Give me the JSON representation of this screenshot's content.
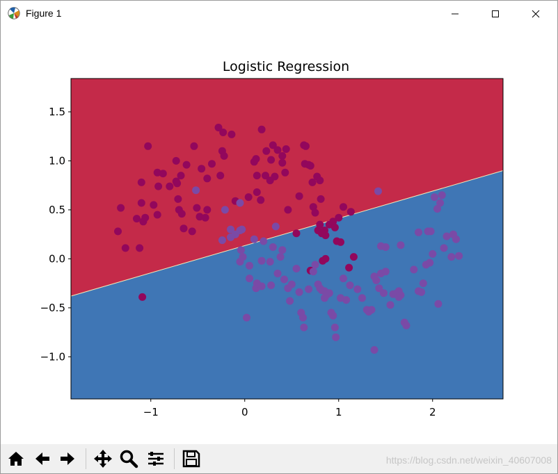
{
  "window": {
    "title": "Figure 1"
  },
  "toolbar": {
    "buttons": [
      {
        "name": "home-icon",
        "title": "Home"
      },
      {
        "name": "back-icon",
        "title": "Back"
      },
      {
        "name": "forward-icon",
        "title": "Forward"
      },
      {
        "name": "pan-icon",
        "title": "Pan"
      },
      {
        "name": "zoom-icon",
        "title": "Zoom"
      },
      {
        "name": "configure-subplots-icon",
        "title": "Configure subplots"
      },
      {
        "name": "save-icon",
        "title": "Save"
      }
    ],
    "watermark": "https://blog.csdn.net/weixin_40607008"
  },
  "chart_data": {
    "type": "scatter",
    "title": "Logistic Regression",
    "xlim": [
      -1.85,
      2.75
    ],
    "ylim": [
      -1.43,
      1.84
    ],
    "xticks": [
      -1,
      0,
      1,
      2
    ],
    "yticks": [
      -1.0,
      -0.5,
      0.0,
      0.5,
      1.0,
      1.5
    ],
    "decision_boundary": {
      "x": [
        -1.85,
        2.75
      ],
      "y": [
        -0.38,
        0.9
      ]
    },
    "region_colors": {
      "upper": "#c42a49",
      "lower": "#3f76b5"
    },
    "series": [
      {
        "color": "#92075c",
        "points": [
          [
            -1.35,
            0.28
          ],
          [
            -1.32,
            0.52
          ],
          [
            -1.27,
            0.11
          ],
          [
            -1.12,
            0.11
          ],
          [
            -1.15,
            0.41
          ],
          [
            -1.1,
            0.78
          ],
          [
            -1.08,
            0.38
          ],
          [
            -1.1,
            0.57
          ],
          [
            -1.06,
            0.42
          ],
          [
            -1.03,
            1.15
          ],
          [
            -0.93,
            0.88
          ],
          [
            -0.92,
            0.74
          ],
          [
            -0.87,
            0.87
          ],
          [
            -0.97,
            0.55
          ],
          [
            -0.93,
            0.45
          ],
          [
            -0.8,
            0.74
          ],
          [
            -0.73,
            0.79
          ],
          [
            -0.73,
            1.0
          ],
          [
            -0.72,
            0.77
          ],
          [
            -0.71,
            0.61
          ],
          [
            -0.68,
            0.85
          ],
          [
            -0.7,
            0.5
          ],
          [
            -0.67,
            0.46
          ],
          [
            -0.65,
            0.31
          ],
          [
            -0.62,
            0.96
          ],
          [
            -0.56,
            0.28
          ],
          [
            -0.54,
            1.15
          ],
          [
            -0.51,
            0.52
          ],
          [
            -0.48,
            0.43
          ],
          [
            -0.42,
            0.42
          ],
          [
            -0.4,
            0.5
          ],
          [
            -0.46,
            0.92
          ],
          [
            -0.4,
            0.82
          ],
          [
            -0.35,
            0.97
          ],
          [
            -0.28,
            1.34
          ],
          [
            -0.26,
            0.85
          ],
          [
            -0.24,
            1.1
          ],
          [
            -0.22,
            1.05
          ],
          [
            -0.23,
            1.29
          ],
          [
            -0.14,
            1.27
          ],
          [
            -0.1,
            0.59
          ],
          [
            0.04,
            0.63
          ],
          [
            0.1,
            0.99
          ],
          [
            0.12,
            1.02
          ],
          [
            0.13,
            0.85
          ],
          [
            0.13,
            0.68
          ],
          [
            0.17,
            0.6
          ],
          [
            0.18,
            1.32
          ],
          [
            0.22,
            0.85
          ],
          [
            0.23,
            1.1
          ],
          [
            0.27,
            0.8
          ],
          [
            0.28,
            1.01
          ],
          [
            0.3,
            1.16
          ],
          [
            0.32,
            0.84
          ],
          [
            0.35,
            1.11
          ],
          [
            0.4,
            1.05
          ],
          [
            0.43,
            0.88
          ],
          [
            0.4,
            0.98
          ],
          [
            0.44,
            1.12
          ],
          [
            0.46,
            0.5
          ],
          [
            0.55,
            0.26
          ],
          [
            0.58,
            0.64
          ],
          [
            0.63,
            1.16
          ],
          [
            0.64,
            0.97
          ],
          [
            0.68,
            0.96
          ],
          [
            0.65,
            1.15
          ],
          [
            0.72,
            0.78
          ],
          [
            0.73,
            0.53
          ],
          [
            0.7,
            0.95
          ],
          [
            0.75,
            0.47
          ],
          [
            0.77,
            0.84
          ],
          [
            0.8,
            0.8
          ],
          [
            0.81,
            0.61
          ],
          [
            0.78,
            0.29
          ],
          [
            0.8,
            0.35
          ],
          [
            0.85,
            0.29
          ],
          [
            0.86,
            0.24
          ],
          [
            0.82,
            0.26
          ],
          [
            0.9,
            0.35
          ],
          [
            0.94,
            0.38
          ],
          [
            0.96,
            0.32
          ],
          [
            0.98,
            0.18
          ],
          [
            1.0,
            0.42
          ],
          [
            1.02,
            0.17
          ],
          [
            1.05,
            0.53
          ],
          [
            1.13,
            0.48
          ],
          [
            0.7,
            -0.12
          ],
          [
            0.83,
            -0.02
          ],
          [
            0.86,
            0.0
          ],
          [
            1.11,
            -0.09
          ],
          [
            1.16,
            0.02
          ],
          [
            -1.09,
            -0.39
          ]
        ]
      },
      {
        "color": "#7a4aa6",
        "points": [
          [
            -0.52,
            0.7
          ],
          [
            -0.21,
            0.5
          ],
          [
            -0.05,
            0.57
          ],
          [
            -0.24,
            0.19
          ],
          [
            -0.15,
            0.22
          ],
          [
            -0.15,
            0.3
          ],
          [
            -0.1,
            0.25
          ],
          [
            -0.05,
            0.29
          ],
          [
            -0.03,
            0.3
          ],
          [
            -0.04,
            0.09
          ],
          [
            -0.05,
            -0.03
          ],
          [
            0.05,
            -0.07
          ],
          [
            0.05,
            -0.2
          ],
          [
            0.12,
            -0.3
          ],
          [
            0.13,
            -0.25
          ],
          [
            0.18,
            -0.28
          ],
          [
            0.18,
            -0.02
          ],
          [
            0.2,
            0.18
          ],
          [
            0.27,
            -0.03
          ],
          [
            0.28,
            -0.27
          ],
          [
            0.3,
            0.12
          ],
          [
            0.35,
            -0.15
          ],
          [
            0.38,
            0.02
          ],
          [
            0.4,
            0.09
          ],
          [
            0.42,
            -0.21
          ],
          [
            0.46,
            -0.3
          ],
          [
            0.5,
            -0.26
          ],
          [
            0.48,
            -0.43
          ],
          [
            0.55,
            -0.1
          ],
          [
            0.58,
            -0.34
          ],
          [
            0.6,
            -0.55
          ],
          [
            0.62,
            -0.6
          ],
          [
            0.63,
            -0.7
          ],
          [
            0.68,
            -0.31
          ],
          [
            0.73,
            -0.13
          ],
          [
            0.75,
            -0.06
          ],
          [
            0.78,
            -0.26
          ],
          [
            0.8,
            -0.3
          ],
          [
            0.82,
            -0.32
          ],
          [
            0.85,
            -0.4
          ],
          [
            0.87,
            -0.37
          ],
          [
            0.85,
            -0.33
          ],
          [
            0.9,
            -0.35
          ],
          [
            0.92,
            -0.55
          ],
          [
            0.94,
            -0.58
          ],
          [
            0.96,
            -0.7
          ],
          [
            0.97,
            -0.8
          ],
          [
            1.02,
            -0.4
          ],
          [
            1.05,
            -0.2
          ],
          [
            1.08,
            -0.42
          ],
          [
            1.12,
            -0.27
          ],
          [
            1.2,
            -0.31
          ],
          [
            1.25,
            -0.4
          ],
          [
            1.3,
            -0.52
          ],
          [
            1.32,
            -0.54
          ],
          [
            1.35,
            -0.52
          ],
          [
            1.38,
            -0.18
          ],
          [
            1.4,
            -0.22
          ],
          [
            1.45,
            -0.15
          ],
          [
            1.43,
            -0.3
          ],
          [
            1.48,
            -0.35
          ],
          [
            1.5,
            -0.13
          ],
          [
            1.45,
            0.13
          ],
          [
            1.5,
            0.12
          ],
          [
            1.55,
            -0.47
          ],
          [
            1.58,
            -0.36
          ],
          [
            1.62,
            -0.35
          ],
          [
            1.64,
            -0.33
          ],
          [
            1.66,
            0.14
          ],
          [
            1.7,
            -0.65
          ],
          [
            1.72,
            -0.68
          ],
          [
            1.8,
            -0.11
          ],
          [
            1.85,
            -0.33
          ],
          [
            1.88,
            -0.34
          ],
          [
            1.9,
            -0.25
          ],
          [
            1.85,
            0.27
          ],
          [
            1.95,
            0.28
          ],
          [
            1.98,
            0.28
          ],
          [
            2.0,
            0.05
          ],
          [
            2.02,
            0.63
          ],
          [
            2.05,
            0.51
          ],
          [
            2.06,
            -0.46
          ],
          [
            2.1,
            0.65
          ],
          [
            2.08,
            0.57
          ],
          [
            2.12,
            0.11
          ],
          [
            2.15,
            0.23
          ],
          [
            2.2,
            0.02
          ],
          [
            2.22,
            0.25
          ],
          [
            2.25,
            0.2
          ],
          [
            1.42,
            0.69
          ],
          [
            1.38,
            -0.93
          ],
          [
            0.02,
            -0.6
          ],
          [
            1.64,
            -0.39
          ],
          [
            1.66,
            -0.37
          ],
          [
            1.93,
            -0.06
          ],
          [
            1.97,
            -0.04
          ],
          [
            2.28,
            0.03
          ],
          [
            0.33,
            0.33
          ],
          [
            0.1,
            0.2
          ],
          [
            -0.02,
            0.02
          ]
        ]
      }
    ]
  }
}
